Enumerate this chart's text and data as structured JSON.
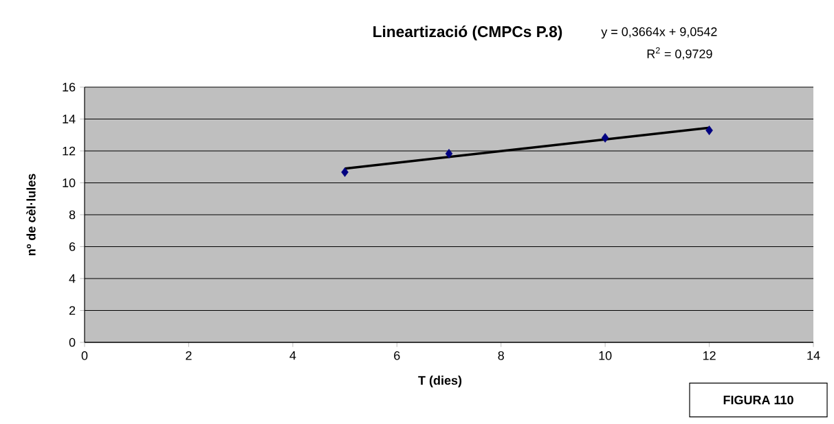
{
  "chart_data": {
    "type": "scatter",
    "title": "Lineartizació (CMPCs P.8)",
    "xlabel": "T (dies)",
    "ylabel": "nº de cèl·lules",
    "annotations": [
      "y = 0,3664x + 9,0542",
      "R$^{2}$ = 0,9729",
      "FIGURA 110"
    ],
    "series": [
      {
        "color": "#000080",
        "x": [
          5,
          7,
          10,
          12
        ],
        "values": [
          10.67,
          11.83,
          12.82,
          13.29
        ],
        "marker": "diamond"
      },
      {
        "type": "line",
        "color": "#000000",
        "x": [
          5,
          12
        ],
        "values": [
          10.89,
          13.45
        ],
        "marker": "none",
        "line_style": "solid"
      }
    ],
    "xlim": [
      0,
      14
    ],
    "xticks": [
      0,
      2,
      4,
      6,
      8,
      10,
      12,
      14
    ],
    "ylim": [
      0,
      16
    ],
    "yticks": [
      0,
      2,
      4,
      6,
      8,
      10,
      12,
      14,
      16
    ],
    "grid": "y"
  }
}
